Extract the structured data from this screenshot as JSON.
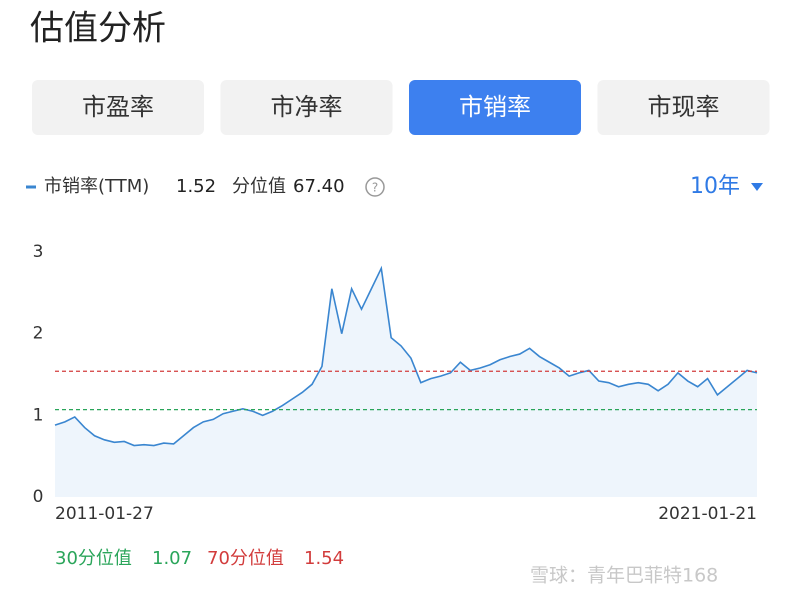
{
  "header": {
    "title": "估值分析",
    "tabs": [
      "市盈率",
      "市净率",
      "市销率",
      "市现率"
    ],
    "active_tab": 2,
    "metric": "市销率(TTM)",
    "current": 1.52,
    "percentile_label": "分位值",
    "percentile": "67.40",
    "period": "10年"
  },
  "chart_data": {
    "type": "line",
    "categories": [
      "2011-01-27",
      null,
      null,
      null,
      null,
      null,
      null,
      null,
      null,
      null,
      null,
      null,
      null,
      null,
      null,
      null,
      null,
      null,
      null,
      null,
      null,
      null,
      null,
      null,
      null,
      null,
      null,
      null,
      null,
      null,
      null,
      null,
      null,
      null,
      null,
      null,
      null,
      null,
      null,
      null,
      null,
      null,
      null,
      null,
      null,
      null,
      null,
      null,
      null,
      null,
      null,
      null,
      null,
      null,
      null,
      null,
      null,
      null,
      null,
      null,
      null,
      null,
      null,
      null,
      null,
      null,
      null,
      null,
      null,
      null,
      null,
      "2021-01-21"
    ],
    "series": [
      {
        "name": "市销率(TTM)",
        "color": "#3a86d0",
        "values": [
          0.88,
          0.92,
          0.98,
          0.85,
          0.75,
          0.7,
          0.67,
          0.68,
          0.63,
          0.64,
          0.63,
          0.66,
          0.65,
          0.75,
          0.85,
          0.92,
          0.95,
          1.02,
          1.05,
          1.08,
          1.05,
          1.0,
          1.05,
          1.12,
          1.2,
          1.28,
          1.38,
          1.6,
          2.55,
          2.0,
          2.55,
          2.3,
          2.55,
          2.8,
          1.95,
          1.85,
          1.7,
          1.4,
          1.45,
          1.48,
          1.52,
          1.65,
          1.55,
          1.58,
          1.62,
          1.68,
          1.72,
          1.75,
          1.82,
          1.72,
          1.65,
          1.58,
          1.48,
          1.52,
          1.55,
          1.42,
          1.4,
          1.35,
          1.38,
          1.4,
          1.38,
          1.3,
          1.38,
          1.52,
          1.42,
          1.35,
          1.45,
          1.25,
          1.35,
          1.45,
          1.55,
          1.52
        ]
      }
    ],
    "ylim": [
      0,
      3
    ],
    "yticks": [
      0,
      1,
      2,
      3
    ],
    "reference_lines": [
      {
        "name": "30分位值",
        "value": 1.07,
        "color": "#2aa55a"
      },
      {
        "name": "70分位值",
        "value": 1.54,
        "color": "#d23c3c"
      }
    ]
  },
  "watermark": "雪球：青年巴菲特168"
}
